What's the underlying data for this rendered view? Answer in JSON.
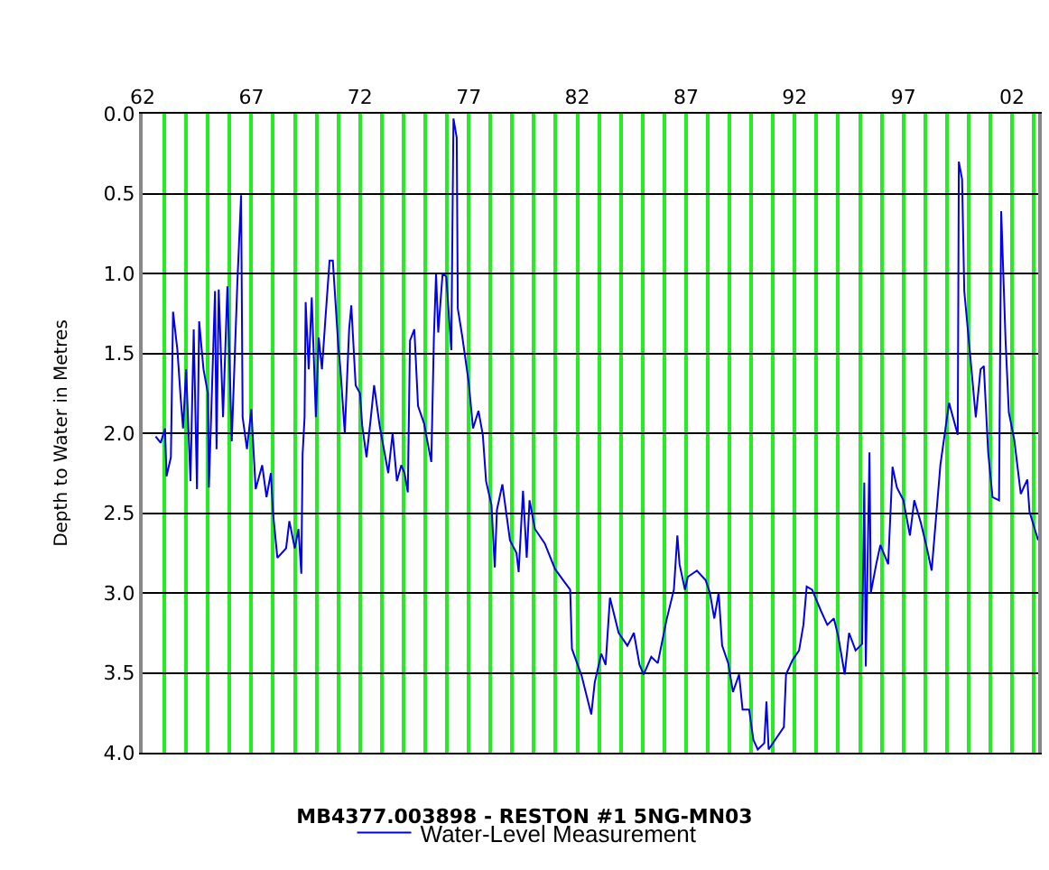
{
  "chart_data": {
    "type": "line",
    "title": "MB4377.003898 - RESTON #1 5NG-MN03",
    "ylabel": "Depth to Water in Metres",
    "xlim": [
      1962,
      2003.2
    ],
    "ylim": [
      4.0,
      0.0
    ],
    "xticks": [
      {
        "value": 1962,
        "label": "62"
      },
      {
        "value": 1963,
        "label": null
      },
      {
        "value": 1964,
        "label": null
      },
      {
        "value": 1965,
        "label": null
      },
      {
        "value": 1966,
        "label": null
      },
      {
        "value": 1967,
        "label": "67"
      },
      {
        "value": 1968,
        "label": null
      },
      {
        "value": 1969,
        "label": null
      },
      {
        "value": 1970,
        "label": null
      },
      {
        "value": 1971,
        "label": null
      },
      {
        "value": 1972,
        "label": "72"
      },
      {
        "value": 1973,
        "label": null
      },
      {
        "value": 1974,
        "label": null
      },
      {
        "value": 1975,
        "label": null
      },
      {
        "value": 1976,
        "label": null
      },
      {
        "value": 1977,
        "label": "77"
      },
      {
        "value": 1978,
        "label": null
      },
      {
        "value": 1979,
        "label": null
      },
      {
        "value": 1980,
        "label": null
      },
      {
        "value": 1981,
        "label": null
      },
      {
        "value": 1982,
        "label": "82"
      },
      {
        "value": 1983,
        "label": null
      },
      {
        "value": 1984,
        "label": null
      },
      {
        "value": 1985,
        "label": null
      },
      {
        "value": 1986,
        "label": null
      },
      {
        "value": 1987,
        "label": "87"
      },
      {
        "value": 1988,
        "label": null
      },
      {
        "value": 1989,
        "label": null
      },
      {
        "value": 1990,
        "label": null
      },
      {
        "value": 1991,
        "label": null
      },
      {
        "value": 1992,
        "label": "92"
      },
      {
        "value": 1993,
        "label": null
      },
      {
        "value": 1994,
        "label": null
      },
      {
        "value": 1995,
        "label": null
      },
      {
        "value": 1996,
        "label": null
      },
      {
        "value": 1997,
        "label": "97"
      },
      {
        "value": 1998,
        "label": null
      },
      {
        "value": 1999,
        "label": null
      },
      {
        "value": 2000,
        "label": null
      },
      {
        "value": 2001,
        "label": null
      },
      {
        "value": 2002,
        "label": "02"
      },
      {
        "value": 2003,
        "label": null
      }
    ],
    "yticks": [
      {
        "value": 0,
        "label": "0.0"
      },
      {
        "value": 0.5,
        "label": "0.5"
      },
      {
        "value": 1,
        "label": "1.0"
      },
      {
        "value": 1.5,
        "label": "1.5"
      },
      {
        "value": 2,
        "label": "2.0"
      },
      {
        "value": 2.5,
        "label": "2.5"
      },
      {
        "value": 3,
        "label": "3.0"
      },
      {
        "value": 3.5,
        "label": "3.5"
      },
      {
        "value": 4,
        "label": "4.0"
      }
    ],
    "grid": true,
    "legend": "bottom",
    "x": [
      1962.6,
      1962.83,
      1963.03,
      1963.1,
      1963.3,
      1963.4,
      1963.6,
      1963.75,
      1963.86,
      1964.0,
      1964.2,
      1964.35,
      1964.5,
      1964.6,
      1964.8,
      1965.0,
      1965.05,
      1965.33,
      1965.4,
      1965.5,
      1965.7,
      1965.9,
      1966.1,
      1966.36,
      1966.53,
      1966.6,
      1966.8,
      1967.0,
      1967.2,
      1967.5,
      1967.7,
      1967.9,
      1968.0,
      1968.2,
      1968.6,
      1968.75,
      1969.0,
      1969.17,
      1969.3,
      1969.36,
      1969.45,
      1969.5,
      1969.64,
      1969.78,
      1969.97,
      1970.1,
      1970.25,
      1970.4,
      1970.6,
      1970.75,
      1971.0,
      1971.1,
      1971.3,
      1971.5,
      1971.6,
      1971.8,
      1972.0,
      1972.1,
      1972.3,
      1972.5,
      1972.65,
      1972.9,
      1973.1,
      1973.3,
      1973.5,
      1973.7,
      1973.9,
      1974.05,
      1974.2,
      1974.3,
      1974.5,
      1974.67,
      1974.95,
      1975.1,
      1975.28,
      1975.4,
      1975.5,
      1975.6,
      1975.8,
      1975.97,
      1976.2,
      1976.3,
      1976.45,
      1976.5,
      1976.7,
      1977.0,
      1977.2,
      1977.45,
      1977.65,
      1977.8,
      1978.05,
      1978.2,
      1978.3,
      1978.55,
      1978.9,
      1979.2,
      1979.3,
      1979.5,
      1979.67,
      1979.8,
      1980.05,
      1980.5,
      1980.97,
      1981.4,
      1981.67,
      1981.75,
      1982.2,
      1982.64,
      1982.8,
      1983.1,
      1983.3,
      1983.5,
      1983.9,
      1984.3,
      1984.6,
      1984.86,
      1985.05,
      1985.4,
      1985.7,
      1986.1,
      1986.44,
      1986.6,
      1986.7,
      1986.95,
      1987.08,
      1987.5,
      1987.9,
      1988.1,
      1988.3,
      1988.5,
      1988.66,
      1988.94,
      1989.16,
      1989.44,
      1989.6,
      1989.9,
      1990.1,
      1990.3,
      1990.6,
      1990.7,
      1990.8,
      1991.2,
      1991.5,
      1991.6,
      1991.9,
      1992.2,
      1992.4,
      1992.55,
      1992.8,
      1993.2,
      1993.5,
      1993.8,
      1994.0,
      1994.3,
      1994.5,
      1994.8,
      1995.1,
      1995.2,
      1995.27,
      1995.44,
      1995.5,
      1995.75,
      1995.94,
      1996.3,
      1996.5,
      1996.7,
      1997.0,
      1997.3,
      1997.5,
      1997.8,
      1998.05,
      1998.3,
      1998.5,
      1998.7,
      1999.1,
      1999.5,
      1999.55,
      1999.7,
      1999.8,
      2000.05,
      2000.33,
      2000.55,
      2000.7,
      2000.9,
      2001.1,
      2001.4,
      2001.5,
      2001.7,
      2001.85,
      2002.1,
      2002.4,
      2002.7,
      2002.8,
      2003.2
    ],
    "series": [
      {
        "name": "Water-Level Measurement",
        "color": "#0000ee",
        "values": [
          2.02,
          2.06,
          1.97,
          2.27,
          2.15,
          1.24,
          1.48,
          1.78,
          1.97,
          1.6,
          2.3,
          1.35,
          2.35,
          1.3,
          1.6,
          1.75,
          2.34,
          1.11,
          2.1,
          1.1,
          1.9,
          1.08,
          2.05,
          1.05,
          0.51,
          1.9,
          2.1,
          1.85,
          2.35,
          2.2,
          2.4,
          2.25,
          2.5,
          2.78,
          2.72,
          2.55,
          2.72,
          2.6,
          2.88,
          2.13,
          1.9,
          1.18,
          1.6,
          1.15,
          1.9,
          1.4,
          1.6,
          1.3,
          0.92,
          0.92,
          1.45,
          1.6,
          2.0,
          1.35,
          1.2,
          1.7,
          1.75,
          1.95,
          2.15,
          1.9,
          1.7,
          1.95,
          2.1,
          2.25,
          2.0,
          2.3,
          2.2,
          2.25,
          2.37,
          1.42,
          1.35,
          1.83,
          1.94,
          2.05,
          2.18,
          1.4,
          1.0,
          1.37,
          1.0,
          1.02,
          1.48,
          0.03,
          0.15,
          1.22,
          1.39,
          1.68,
          1.97,
          1.86,
          2.01,
          2.3,
          2.45,
          2.84,
          2.48,
          2.32,
          2.67,
          2.75,
          2.87,
          2.36,
          2.78,
          2.42,
          2.6,
          2.69,
          2.85,
          2.93,
          2.98,
          3.35,
          3.52,
          3.76,
          3.56,
          3.38,
          3.45,
          3.03,
          3.25,
          3.33,
          3.25,
          3.45,
          3.51,
          3.4,
          3.44,
          3.17,
          2.98,
          2.64,
          2.82,
          2.98,
          2.9,
          2.86,
          2.92,
          3.0,
          3.16,
          3.0,
          3.33,
          3.44,
          3.62,
          3.51,
          3.73,
          3.73,
          3.92,
          3.98,
          3.94,
          3.68,
          3.98,
          3.9,
          3.84,
          3.51,
          3.42,
          3.36,
          3.2,
          2.96,
          2.98,
          3.11,
          3.2,
          3.16,
          3.27,
          3.51,
          3.25,
          3.36,
          3.32,
          2.31,
          3.46,
          2.12,
          3.0,
          2.82,
          2.7,
          2.82,
          2.21,
          2.34,
          2.42,
          2.64,
          2.42,
          2.56,
          2.7,
          2.86,
          2.53,
          2.2,
          1.81,
          2.01,
          0.3,
          0.41,
          1.11,
          1.48,
          1.9,
          1.6,
          1.58,
          2.12,
          2.4,
          2.42,
          0.61,
          1.42,
          1.87,
          2.04,
          2.38,
          2.29,
          2.49,
          2.67
        ]
      }
    ]
  }
}
